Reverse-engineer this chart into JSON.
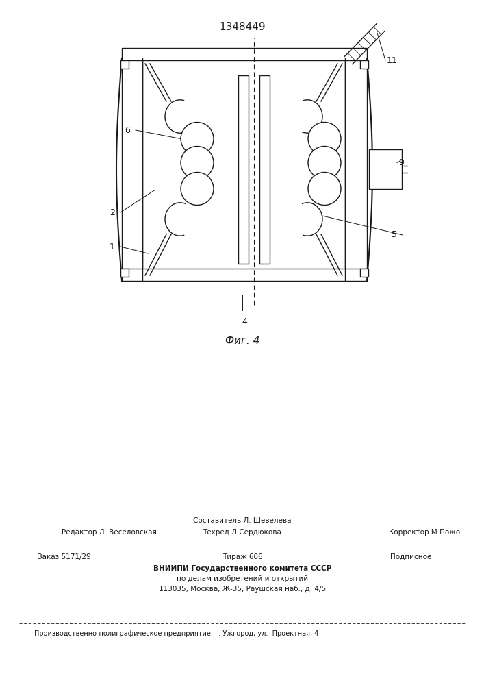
{
  "patent_number": "1348449",
  "fig_label": "Фиг. 4",
  "bg_color": "#ffffff",
  "line_color": "#1a1a1a",
  "footer": {
    "line1_left": "Редактор Л. Веселовская",
    "line1_center_top": "Составитель Л. Шевелева",
    "line1_center": "Техред Л.Сердюкова",
    "line1_right": "Корректор М.Пожо",
    "line2_left": "Заказ 5171/29",
    "line2_center": "Тираж 606",
    "line2_right": "Подписное",
    "line3a": "ВНИИПИ Государственного комитета СССР",
    "line3b": "по делам изобретений и открытий",
    "line3c": "113035, Москва, Ж-35, Раушская наб., д. 4/5",
    "line4": "Производственно-полиграфическое предприятие, г. Ужгород, ул.  Проектная, 4"
  }
}
